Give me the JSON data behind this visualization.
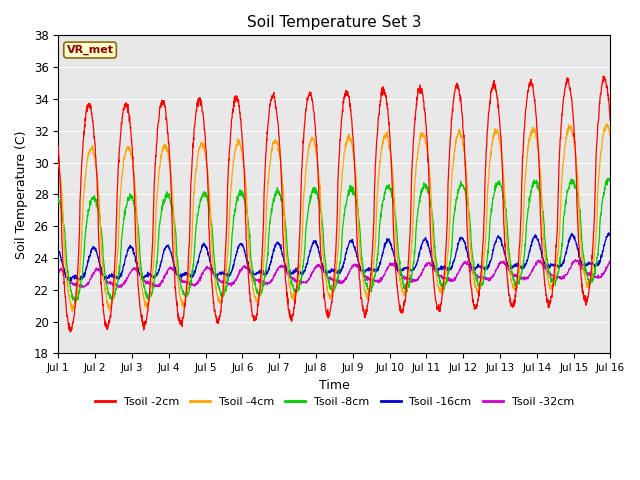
{
  "title": "Soil Temperature Set 3",
  "xlabel": "Time",
  "ylabel": "Soil Temperature (C)",
  "ylim": [
    18,
    38
  ],
  "yticks": [
    18,
    20,
    22,
    24,
    26,
    28,
    30,
    32,
    34,
    36,
    38
  ],
  "colors": {
    "Tsoil -2cm": "#ff0000",
    "Tsoil -4cm": "#ffa500",
    "Tsoil -8cm": "#00cc00",
    "Tsoil -16cm": "#0000cc",
    "Tsoil -32cm": "#cc00cc"
  },
  "annotation_text": "VR_met",
  "annotation_color": "#8b0000",
  "annotation_bg": "#ffffcc",
  "background_color": "#e8e8e8",
  "grid_color": "#ffffff",
  "n_days": 15,
  "points_per_day": 144
}
